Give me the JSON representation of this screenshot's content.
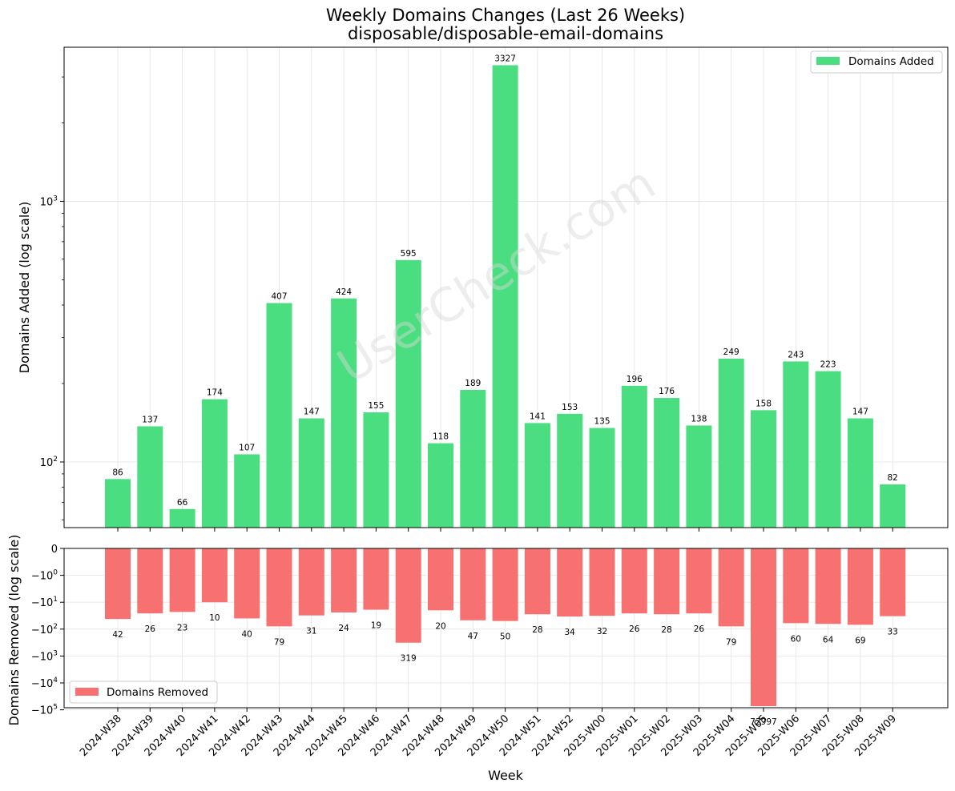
{
  "chart_data": [
    {
      "type": "bar",
      "title": "Weekly Domains Changes (Last 26 Weeks)",
      "subtitle": "disposable/disposable-email-domains",
      "watermark": "UserCheck.com",
      "ylabel": "Domains Added (log scale)",
      "yscale": "log",
      "ylim": [
        56,
        3900
      ],
      "yticks": [
        {
          "value": 100,
          "label": "10^2"
        },
        {
          "value": 1000,
          "label": "10^3"
        }
      ],
      "grid": true,
      "legend": {
        "position": "top-right",
        "entries": [
          "Domains Added"
        ]
      },
      "color": "#4ade80",
      "series": [
        {
          "name": "Domains Added",
          "values": [
            86,
            137,
            66,
            174,
            107,
            407,
            147,
            424,
            155,
            595,
            118,
            189,
            3327,
            141,
            153,
            135,
            196,
            176,
            138,
            249,
            158,
            243,
            223,
            147,
            82
          ]
        }
      ]
    },
    {
      "type": "bar",
      "ylabel": "Domains Removed (log scale)",
      "xlabel": "Week",
      "yscale": "symlog",
      "yticks": [
        {
          "value": 0,
          "label": "0"
        },
        {
          "value": -1,
          "label": "−10^0"
        },
        {
          "value": -10,
          "label": "−10^1"
        },
        {
          "value": -100,
          "label": "−10^2"
        },
        {
          "value": -1000,
          "label": "−10^3"
        },
        {
          "value": -10000,
          "label": "−10^4"
        },
        {
          "value": -100000,
          "label": "−10^5"
        }
      ],
      "grid": true,
      "legend": {
        "position": "bottom-left",
        "entries": [
          "Domains Removed"
        ]
      },
      "color": "#f87171",
      "series": [
        {
          "name": "Domains Removed",
          "values": [
            -42,
            -26,
            -23,
            -10,
            -40,
            -79,
            -31,
            -24,
            -19,
            -319,
            -20,
            -47,
            -50,
            -28,
            -34,
            -32,
            -26,
            -28,
            -26,
            -79,
            -72997,
            -60,
            -64,
            -69,
            -33
          ]
        }
      ]
    }
  ],
  "categories": [
    "2024-W38",
    "2024-W39",
    "2024-W40",
    "2024-W41",
    "2024-W42",
    "2024-W43",
    "2024-W44",
    "2024-W45",
    "2024-W46",
    "2024-W47",
    "2024-W48",
    "2024-W49",
    "2024-W50",
    "2024-W51",
    "2024-W52",
    "2025-W00",
    "2025-W01",
    "2025-W02",
    "2025-W03",
    "2025-W04",
    "2025-W05",
    "2025-W06",
    "2025-W07",
    "2025-W08",
    "2025-W09"
  ]
}
